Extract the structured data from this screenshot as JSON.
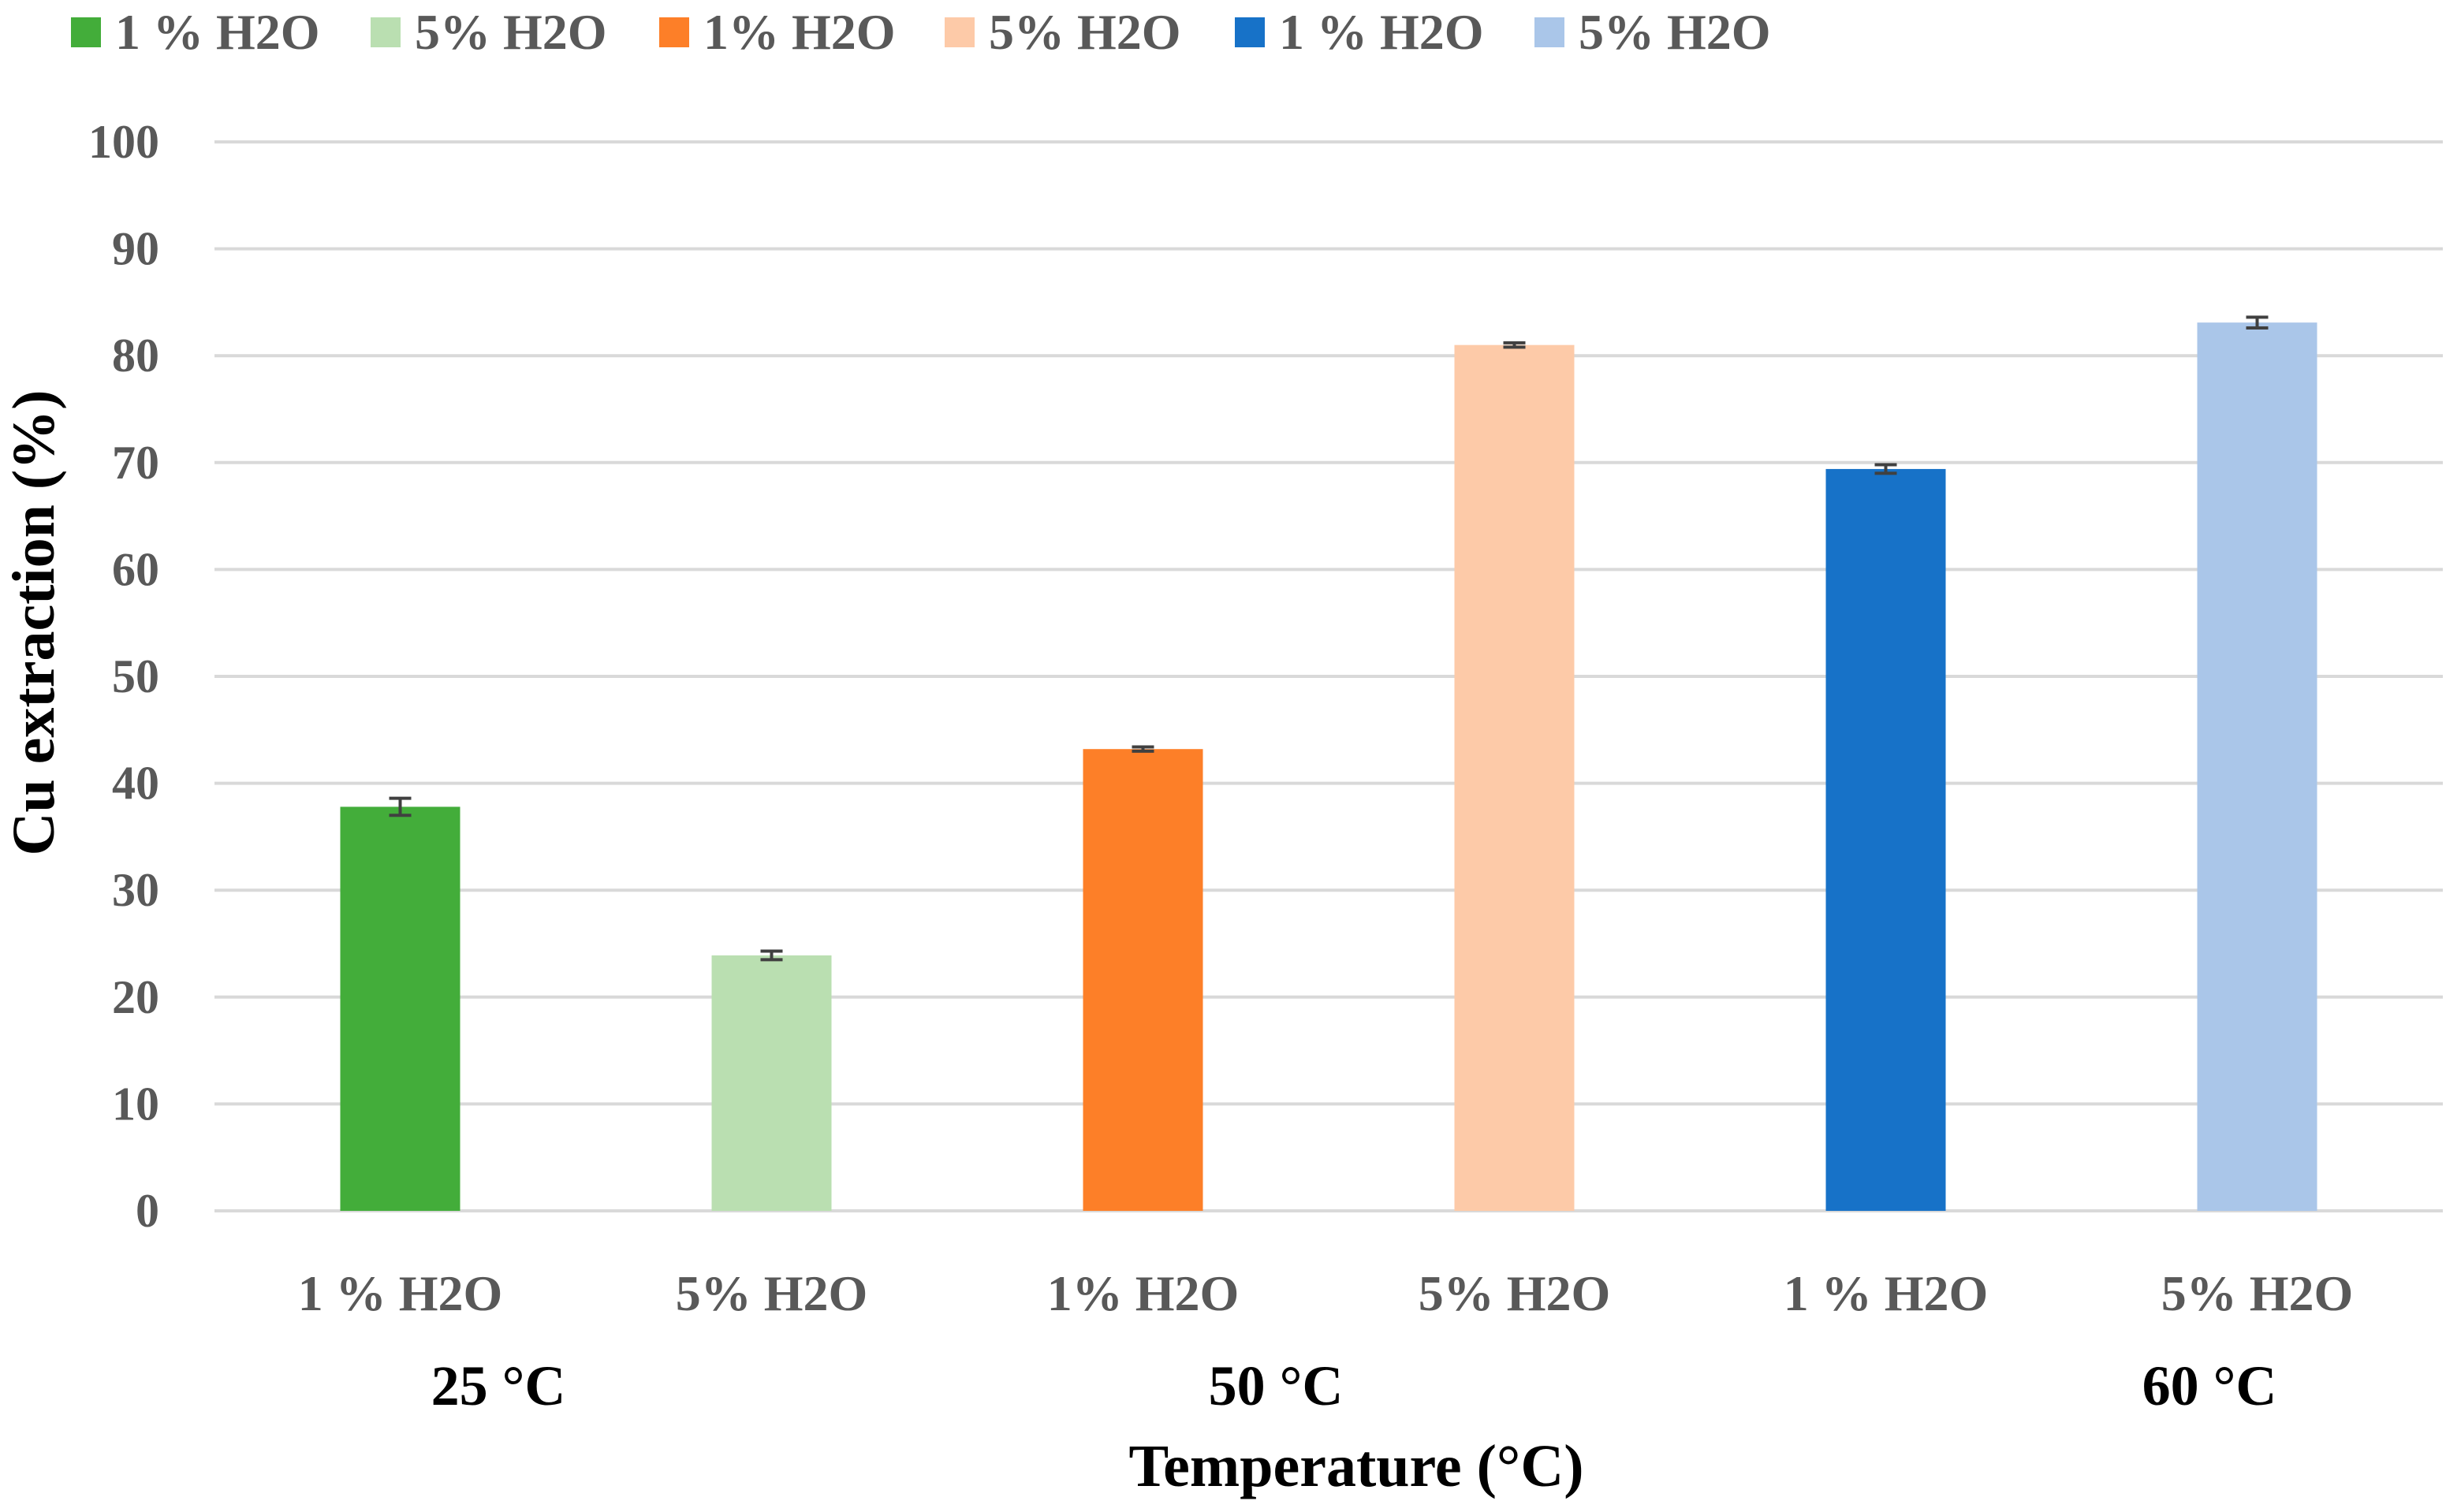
{
  "chart_data": {
    "type": "bar",
    "title": "",
    "xlabel": "Temperature (°C)",
    "ylabel": "Cu extraction (%)",
    "ylim": [
      0,
      100
    ],
    "yticks": [
      0,
      10,
      20,
      30,
      40,
      50,
      60,
      70,
      80,
      90,
      100
    ],
    "grid": true,
    "legend_position": "top",
    "categories": [
      "1 % H2O",
      "5% H2O",
      "1% H2O",
      "5% H2O",
      "1 % H2O",
      "5% H2O"
    ],
    "groups": [
      {
        "label": "25 °C",
        "category_indices": [
          0,
          1
        ]
      },
      {
        "label": "50 °C",
        "category_indices": [
          2,
          3
        ]
      },
      {
        "label": "60 °C",
        "category_indices": [
          4,
          5
        ]
      }
    ],
    "series": [
      {
        "name": "1 % H2O",
        "category_index": 0,
        "value": 37.8,
        "error": 0.8,
        "color": "#43ad3a"
      },
      {
        "name": "5% H2O",
        "category_index": 1,
        "value": 23.9,
        "error": 0.4,
        "color": "#badfb1"
      },
      {
        "name": "1% H2O",
        "category_index": 2,
        "value": 43.2,
        "error": 0.2,
        "color": "#fd7f28"
      },
      {
        "name": "5% H2O",
        "category_index": 3,
        "value": 81.0,
        "error": 0.2,
        "color": "#fdcaa8"
      },
      {
        "name": "1 % H2O",
        "category_index": 4,
        "value": 69.4,
        "error": 0.4,
        "color": "#1772c8"
      },
      {
        "name": "5% H2O",
        "category_index": 5,
        "value": 83.1,
        "error": 0.5,
        "color": "#aac6e9"
      }
    ]
  }
}
